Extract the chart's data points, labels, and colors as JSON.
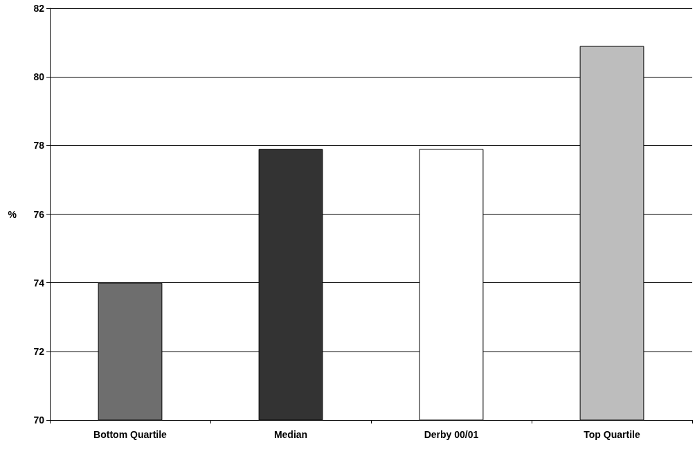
{
  "chart_data": {
    "type": "bar",
    "ylabel": "%",
    "categories": [
      "Bottom Quartile",
      "Median",
      "Derby 00/01",
      "Top Quartile"
    ],
    "values": [
      74,
      77.9,
      77.9,
      80.9
    ],
    "colors": [
      "#6e6e6e",
      "#333333",
      "#ffffff",
      "#bdbdbd"
    ],
    "ylim": [
      70,
      82
    ],
    "yticks": [
      70,
      72,
      74,
      76,
      78,
      80,
      82
    ],
    "grid": "y"
  }
}
